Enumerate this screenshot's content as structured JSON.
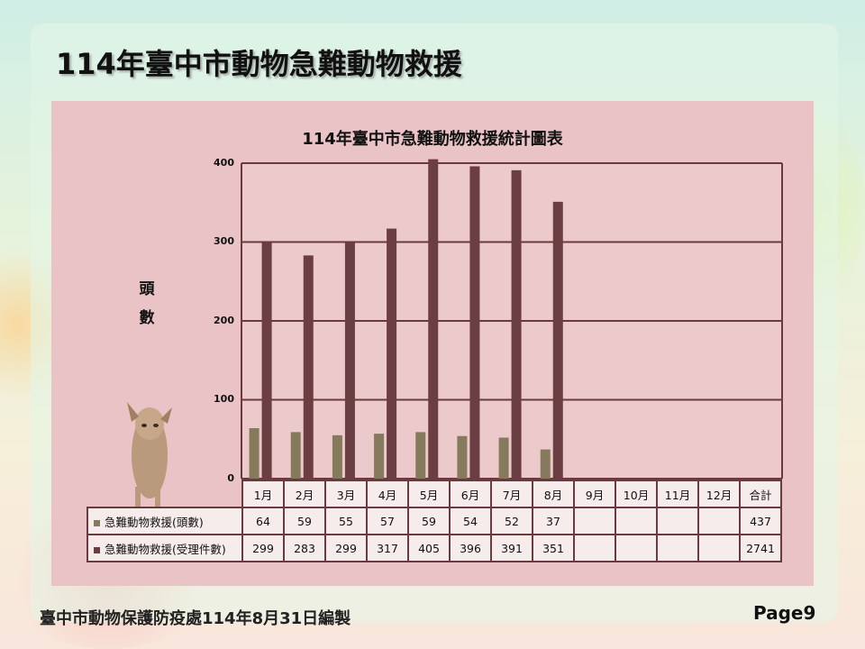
{
  "slide": {
    "title": "114年臺中市動物急難動物救援",
    "page": "Page9"
  },
  "footer": {
    "text": "臺中市動物保護防疫處114年8月31日編製"
  },
  "colors": {
    "series1": "#857a5c",
    "series2": "#6b3e42",
    "panel": "#e9c3c5",
    "grid": "#6a3a3e"
  },
  "chart_data": {
    "type": "bar",
    "title": "114年臺中市急難動物救援統計圖表",
    "ylabel": "頭數",
    "ylim": [
      0,
      400
    ],
    "yticks": [
      "0",
      "100",
      "200",
      "300",
      "400"
    ],
    "grid": true,
    "categories": [
      "1月",
      "2月",
      "3月",
      "4月",
      "5月",
      "6月",
      "7月",
      "8月",
      "9月",
      "10月",
      "11月",
      "12月"
    ],
    "total_label": "合計",
    "series": [
      {
        "name": "急難動物救援(頭數)",
        "values": [
          64,
          59,
          55,
          57,
          59,
          54,
          52,
          37,
          null,
          null,
          null,
          null
        ],
        "total": "437"
      },
      {
        "name": "急難動物救援(受理件數)",
        "values": [
          299,
          283,
          299,
          317,
          405,
          396,
          391,
          351,
          null,
          null,
          null,
          null
        ],
        "total": "2741"
      }
    ]
  }
}
